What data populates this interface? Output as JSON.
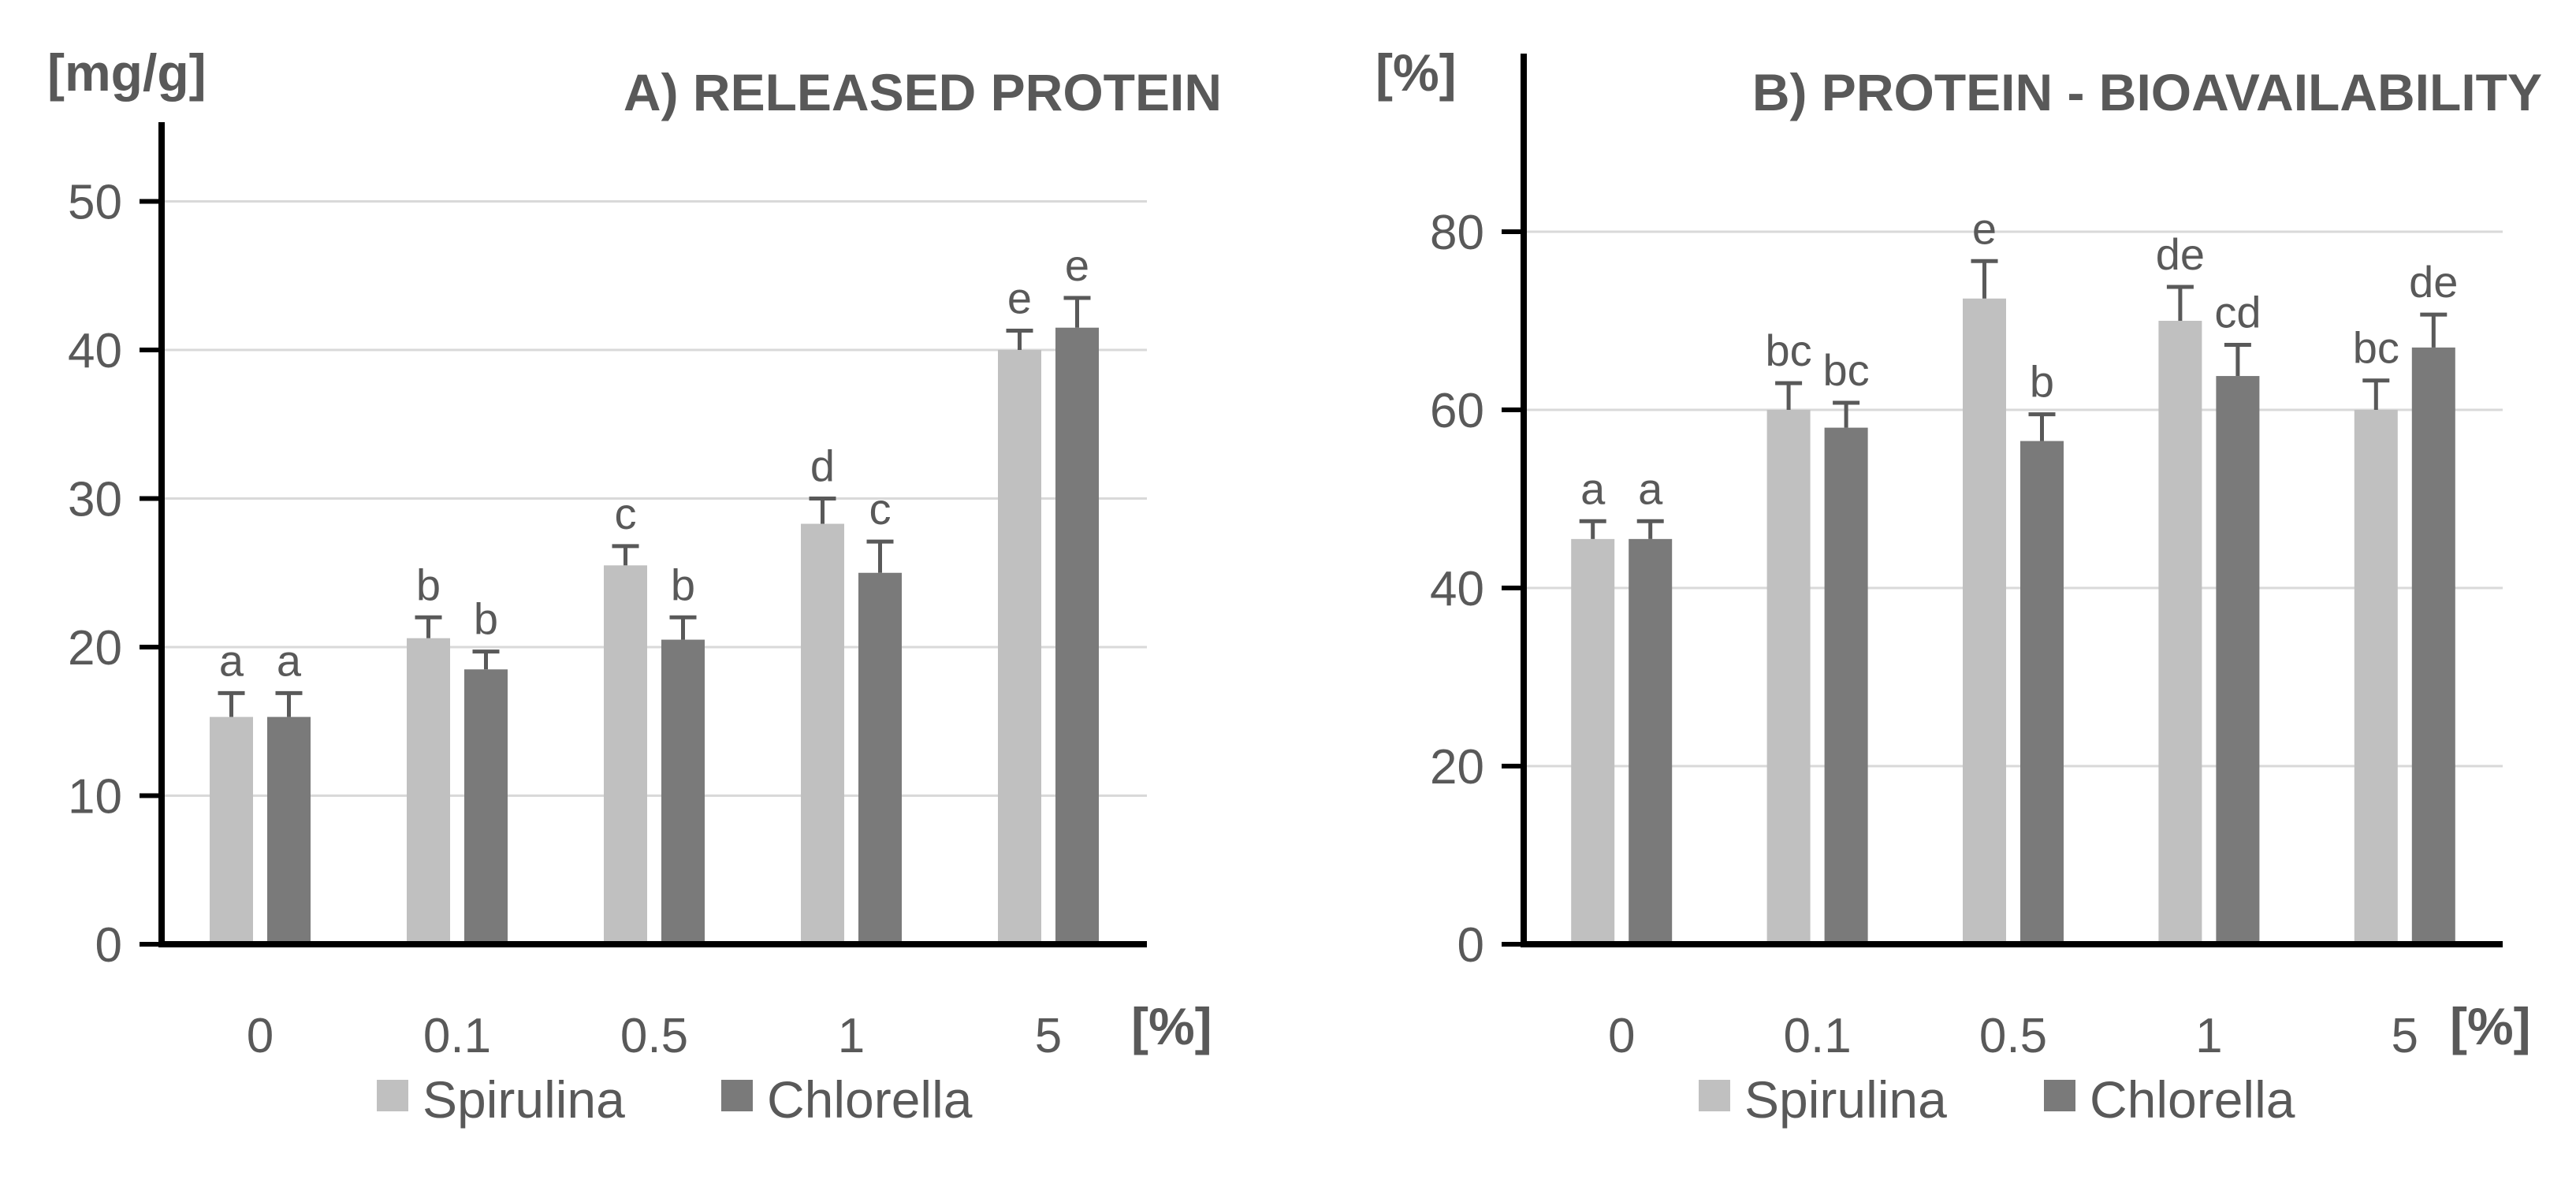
{
  "colors": {
    "spirulina": "#c0c0c0",
    "chlorella": "#7a7a7a",
    "grid": "#d9d9d9",
    "axis": "#000000",
    "errbar": "#595959",
    "text": "#595959"
  },
  "chart_data": [
    {
      "type": "bar",
      "title": "A) RELEASED PROTEIN",
      "ylabel": "[mg/g]",
      "xlabel": "[%]",
      "categories": [
        "0",
        "0.1",
        "0.5",
        "1",
        "5"
      ],
      "yticks": [
        "0",
        "10",
        "20",
        "30",
        "40",
        "50"
      ],
      "ylim": [
        0,
        55
      ],
      "grid": true,
      "series": [
        {
          "name": "Spirulina",
          "values": [
            15.3,
            20.6,
            25.5,
            28.3,
            40.0
          ],
          "errors": [
            1.6,
            1.4,
            1.3,
            1.7,
            1.3
          ],
          "labels": [
            "a",
            "b",
            "c",
            "d",
            "e"
          ]
        },
        {
          "name": "Chlorella",
          "values": [
            15.3,
            18.5,
            20.5,
            25.0,
            41.5
          ],
          "errors": [
            1.6,
            1.2,
            1.5,
            2.1,
            2.0
          ],
          "labels": [
            "a",
            "b",
            "b",
            "c",
            "e"
          ]
        }
      ],
      "legend": [
        "Spirulina",
        "Chlorella"
      ],
      "legend_position": "bottom"
    },
    {
      "type": "bar",
      "title": "B) PROTEIN - BIOAVAILABILITY",
      "ylabel": "[%]",
      "xlabel": "[%]",
      "categories": [
        "0",
        "0.1",
        "0.5",
        "1",
        "5"
      ],
      "yticks": [
        "0",
        "20",
        "40",
        "60",
        "80"
      ],
      "ylim": [
        0,
        100
      ],
      "grid": true,
      "series": [
        {
          "name": "Spirulina",
          "values": [
            45.5,
            60.0,
            72.5,
            70.0,
            60.0
          ],
          "errors": [
            2.0,
            3.0,
            4.2,
            3.8,
            3.3
          ],
          "labels": [
            "a",
            "bc",
            "e",
            "de",
            "bc"
          ]
        },
        {
          "name": "Chlorella",
          "values": [
            45.5,
            58.0,
            56.5,
            63.8,
            67.0
          ],
          "errors": [
            2.0,
            2.8,
            3.0,
            3.5,
            3.7
          ],
          "labels": [
            "a",
            "bc",
            "b",
            "cd",
            "de"
          ]
        }
      ],
      "legend": [
        "Spirulina",
        "Chlorella"
      ],
      "legend_position": "bottom"
    }
  ]
}
